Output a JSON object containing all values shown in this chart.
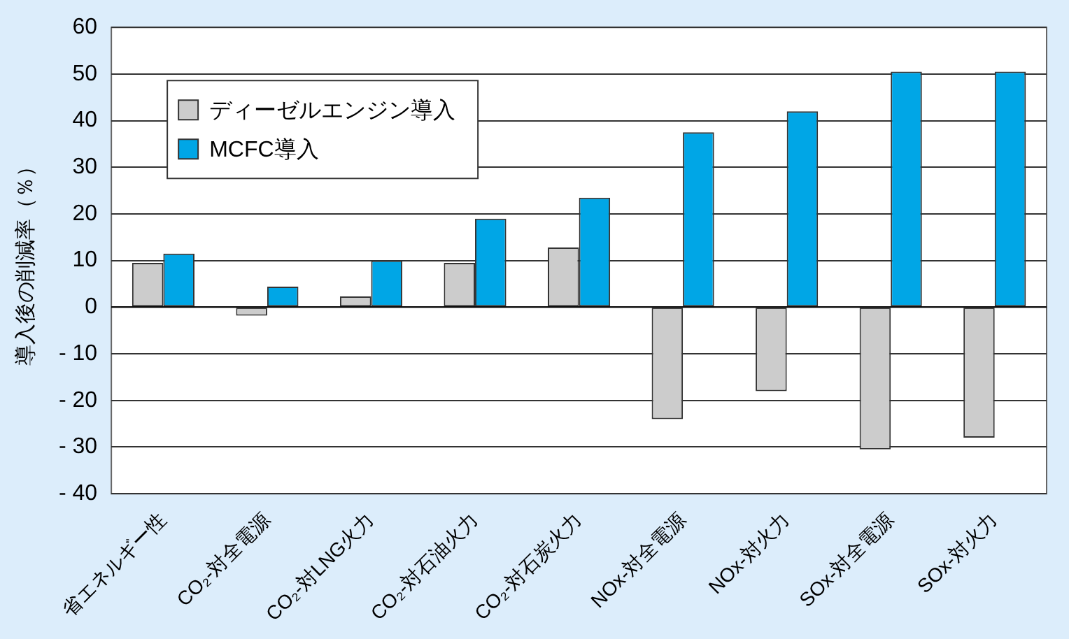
{
  "chart_data": {
    "type": "bar",
    "ylabel": "導入後の削減率（％）",
    "categories": [
      "省エネルギー性",
      "CO₂-対全電源",
      "CO₂-対LNG火力",
      "CO₂-対石油火力",
      "CO₂-対石炭火力",
      "NOx-対全電源",
      "NOx-対火力",
      "SOx-対全電源",
      "SOx-対火力"
    ],
    "series": [
      {
        "name": "ディーゼルエンジン導入",
        "color": "#cccccc",
        "values": [
          9.5,
          -1.8,
          2.3,
          9.5,
          12.8,
          -24,
          -18,
          -30.5,
          -28
        ]
      },
      {
        "name": "MCFC導入",
        "color": "#00a6e6",
        "values": [
          11.5,
          4.4,
          10,
          19,
          23.5,
          37.5,
          42,
          50.5,
          50.5
        ]
      }
    ],
    "ylim": [
      -40,
      60
    ],
    "yticks": [
      {
        "value": -40,
        "label": "- 40"
      },
      {
        "value": -30,
        "label": "- 30"
      },
      {
        "value": -20,
        "label": "- 20"
      },
      {
        "value": -10,
        "label": "- 10"
      },
      0,
      10,
      20,
      30,
      40,
      50,
      60
    ],
    "grid": "y",
    "legend": "top left"
  }
}
